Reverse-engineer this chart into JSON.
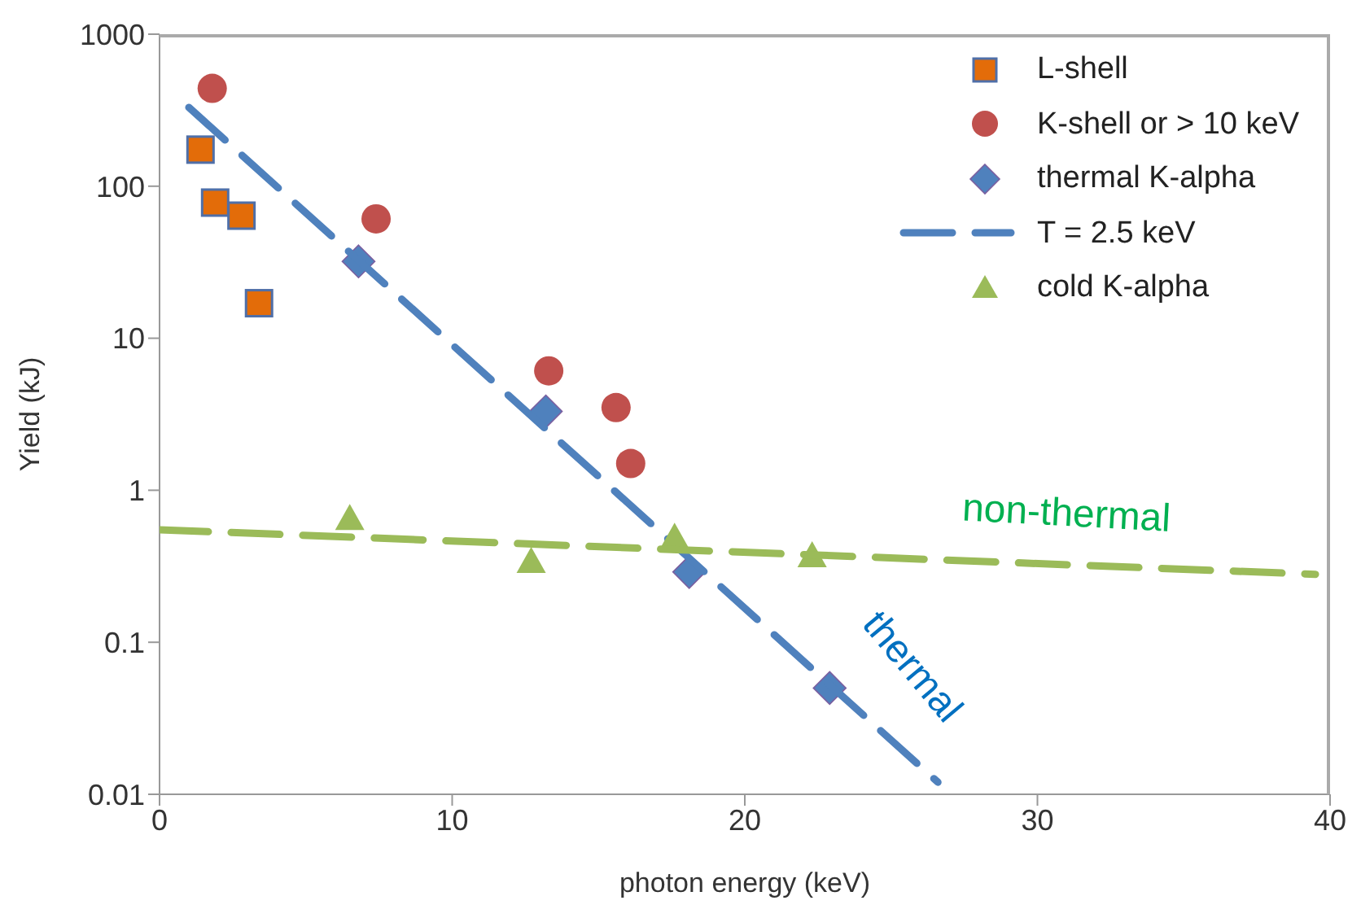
{
  "chart_data": {
    "type": "scatter",
    "xlabel": "photon energy (keV)",
    "ylabel": "Yield (kJ)",
    "log": "y",
    "legend": "top right",
    "xlim": [
      0,
      40
    ],
    "xticks": [
      0,
      10,
      20,
      30,
      40
    ],
    "ylim": [
      0.01,
      1000
    ],
    "yticks": [
      0.01,
      0.1,
      1,
      10,
      100,
      1000
    ],
    "series": [
      {
        "name": "L-shell",
        "marker": "square",
        "color": "#e36c09",
        "x": [
          1.4,
          1.9,
          2.8,
          3.4
        ],
        "values": [
          174,
          78,
          64,
          17
        ]
      },
      {
        "name": "K-shell or > 10 keV",
        "marker": "circle",
        "color": "#c0504d",
        "x": [
          1.8,
          7.4,
          13.3,
          15.6,
          16.1
        ],
        "values": [
          440,
          61,
          6.1,
          3.5,
          1.5
        ]
      },
      {
        "name": "thermal K-alpha",
        "marker": "diamond",
        "color": "#4f81bd",
        "x": [
          6.8,
          13.2,
          18.1,
          22.9
        ],
        "values": [
          32,
          3.3,
          0.29,
          0.05
        ]
      },
      {
        "name": "T = 2.5 keV",
        "type": "line",
        "marker": "none",
        "line_style": "dashed",
        "color": "#4f81bd",
        "x": [
          1,
          26.6
        ],
        "values": [
          330,
          0.012
        ]
      },
      {
        "name": "cold K-alpha",
        "marker": "triangle",
        "color": "#9bbb59",
        "x": [
          6.5,
          12.7,
          17.6,
          22.3
        ],
        "values": [
          0.65,
          0.34,
          0.49,
          0.37
        ]
      },
      {
        "type": "line",
        "marker": "none",
        "line_style": "dashed",
        "color": "#9bbb59",
        "x": [
          0,
          39.5
        ],
        "values": [
          0.55,
          0.28
        ]
      }
    ],
    "annotations": [
      "non-thermal",
      "thermal"
    ]
  }
}
